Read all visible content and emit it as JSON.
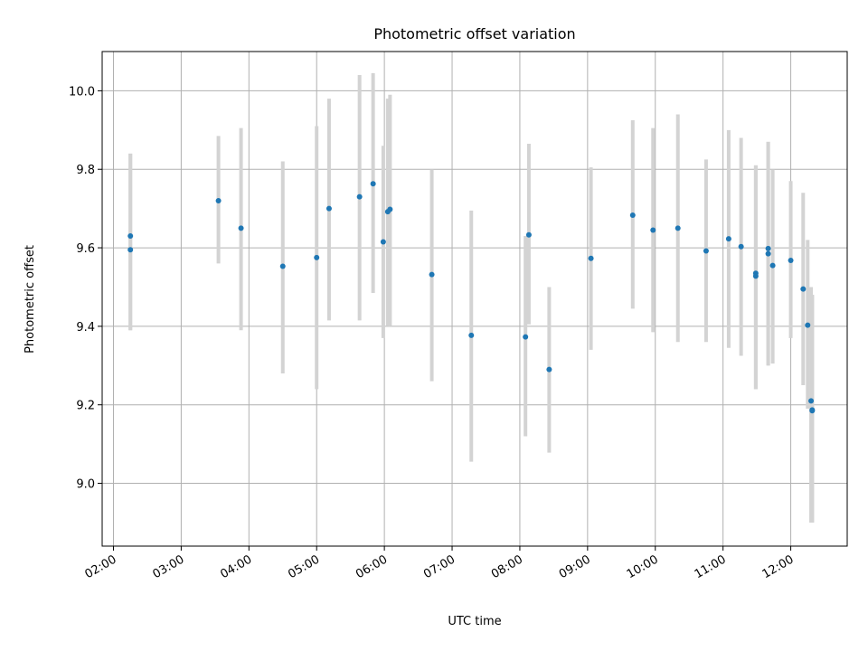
{
  "chart_data": {
    "type": "scatter",
    "title": "Photometric offset variation",
    "xlabel": "UTC time",
    "ylabel": "Photometric offset",
    "xlim": [
      "01:50",
      "12:50"
    ],
    "ylim": [
      8.84,
      10.1
    ],
    "xticks": [
      "02:00",
      "03:00",
      "04:00",
      "05:00",
      "06:00",
      "07:00",
      "08:00",
      "09:00",
      "10:00",
      "11:00",
      "12:00"
    ],
    "yticks": [
      9.0,
      9.2,
      9.4,
      9.6,
      9.8,
      10.0
    ],
    "grid": true,
    "marker_color": "#1f77b4",
    "errorbar_color": "#d3d3d3",
    "points": [
      {
        "time": "02:15",
        "y": 9.63,
        "lo": 9.39,
        "hi": 9.84
      },
      {
        "time": "02:15",
        "y": 9.595,
        "lo": 9.39,
        "hi": 9.84
      },
      {
        "time": "03:33",
        "y": 9.72,
        "lo": 9.56,
        "hi": 9.885
      },
      {
        "time": "03:53",
        "y": 9.65,
        "lo": 9.39,
        "hi": 9.905
      },
      {
        "time": "04:30",
        "y": 9.553,
        "lo": 9.28,
        "hi": 9.82
      },
      {
        "time": "05:00",
        "y": 9.575,
        "lo": 9.24,
        "hi": 9.91
      },
      {
        "time": "05:11",
        "y": 9.7,
        "lo": 9.415,
        "hi": 9.98
      },
      {
        "time": "05:38",
        "y": 9.73,
        "lo": 9.415,
        "hi": 10.04
      },
      {
        "time": "05:50",
        "y": 9.763,
        "lo": 9.485,
        "hi": 10.045
      },
      {
        "time": "05:59",
        "y": 9.615,
        "lo": 9.37,
        "hi": 9.86
      },
      {
        "time": "06:03",
        "y": 9.692,
        "lo": 9.4,
        "hi": 9.98
      },
      {
        "time": "06:05",
        "y": 9.698,
        "lo": 9.4,
        "hi": 9.99
      },
      {
        "time": "06:42",
        "y": 9.532,
        "lo": 9.26,
        "hi": 9.8
      },
      {
        "time": "07:17",
        "y": 9.377,
        "lo": 9.055,
        "hi": 9.695
      },
      {
        "time": "08:05",
        "y": 9.373,
        "lo": 9.12,
        "hi": 9.63
      },
      {
        "time": "08:08",
        "y": 9.633,
        "lo": 9.405,
        "hi": 9.865
      },
      {
        "time": "08:26",
        "y": 9.29,
        "lo": 9.078,
        "hi": 9.5
      },
      {
        "time": "09:03",
        "y": 9.573,
        "lo": 9.34,
        "hi": 9.805
      },
      {
        "time": "09:40",
        "y": 9.683,
        "lo": 9.445,
        "hi": 9.925
      },
      {
        "time": "09:58",
        "y": 9.645,
        "lo": 9.385,
        "hi": 9.905
      },
      {
        "time": "10:20",
        "y": 9.65,
        "lo": 9.36,
        "hi": 9.94
      },
      {
        "time": "10:45",
        "y": 9.592,
        "lo": 9.36,
        "hi": 9.825
      },
      {
        "time": "11:05",
        "y": 9.623,
        "lo": 9.345,
        "hi": 9.9
      },
      {
        "time": "11:16",
        "y": 9.603,
        "lo": 9.325,
        "hi": 9.88
      },
      {
        "time": "11:29",
        "y": 9.535,
        "lo": 9.24,
        "hi": 9.81
      },
      {
        "time": "11:29",
        "y": 9.528,
        "lo": 9.24,
        "hi": 9.81
      },
      {
        "time": "11:40",
        "y": 9.598,
        "lo": 9.3,
        "hi": 9.87
      },
      {
        "time": "11:40",
        "y": 9.585,
        "lo": 9.3,
        "hi": 9.87
      },
      {
        "time": "11:44",
        "y": 9.555,
        "lo": 9.305,
        "hi": 9.8
      },
      {
        "time": "12:00",
        "y": 9.568,
        "lo": 9.37,
        "hi": 9.77
      },
      {
        "time": "12:11",
        "y": 9.495,
        "lo": 9.25,
        "hi": 9.74
      },
      {
        "time": "12:15",
        "y": 9.403,
        "lo": 9.19,
        "hi": 9.62
      },
      {
        "time": "12:18",
        "y": 9.21,
        "lo": 8.9,
        "hi": 9.5
      },
      {
        "time": "12:19",
        "y": 9.187,
        "lo": 8.9,
        "hi": 9.48
      },
      {
        "time": "12:19",
        "y": 9.185,
        "lo": 8.9,
        "hi": 9.48
      }
    ]
  }
}
